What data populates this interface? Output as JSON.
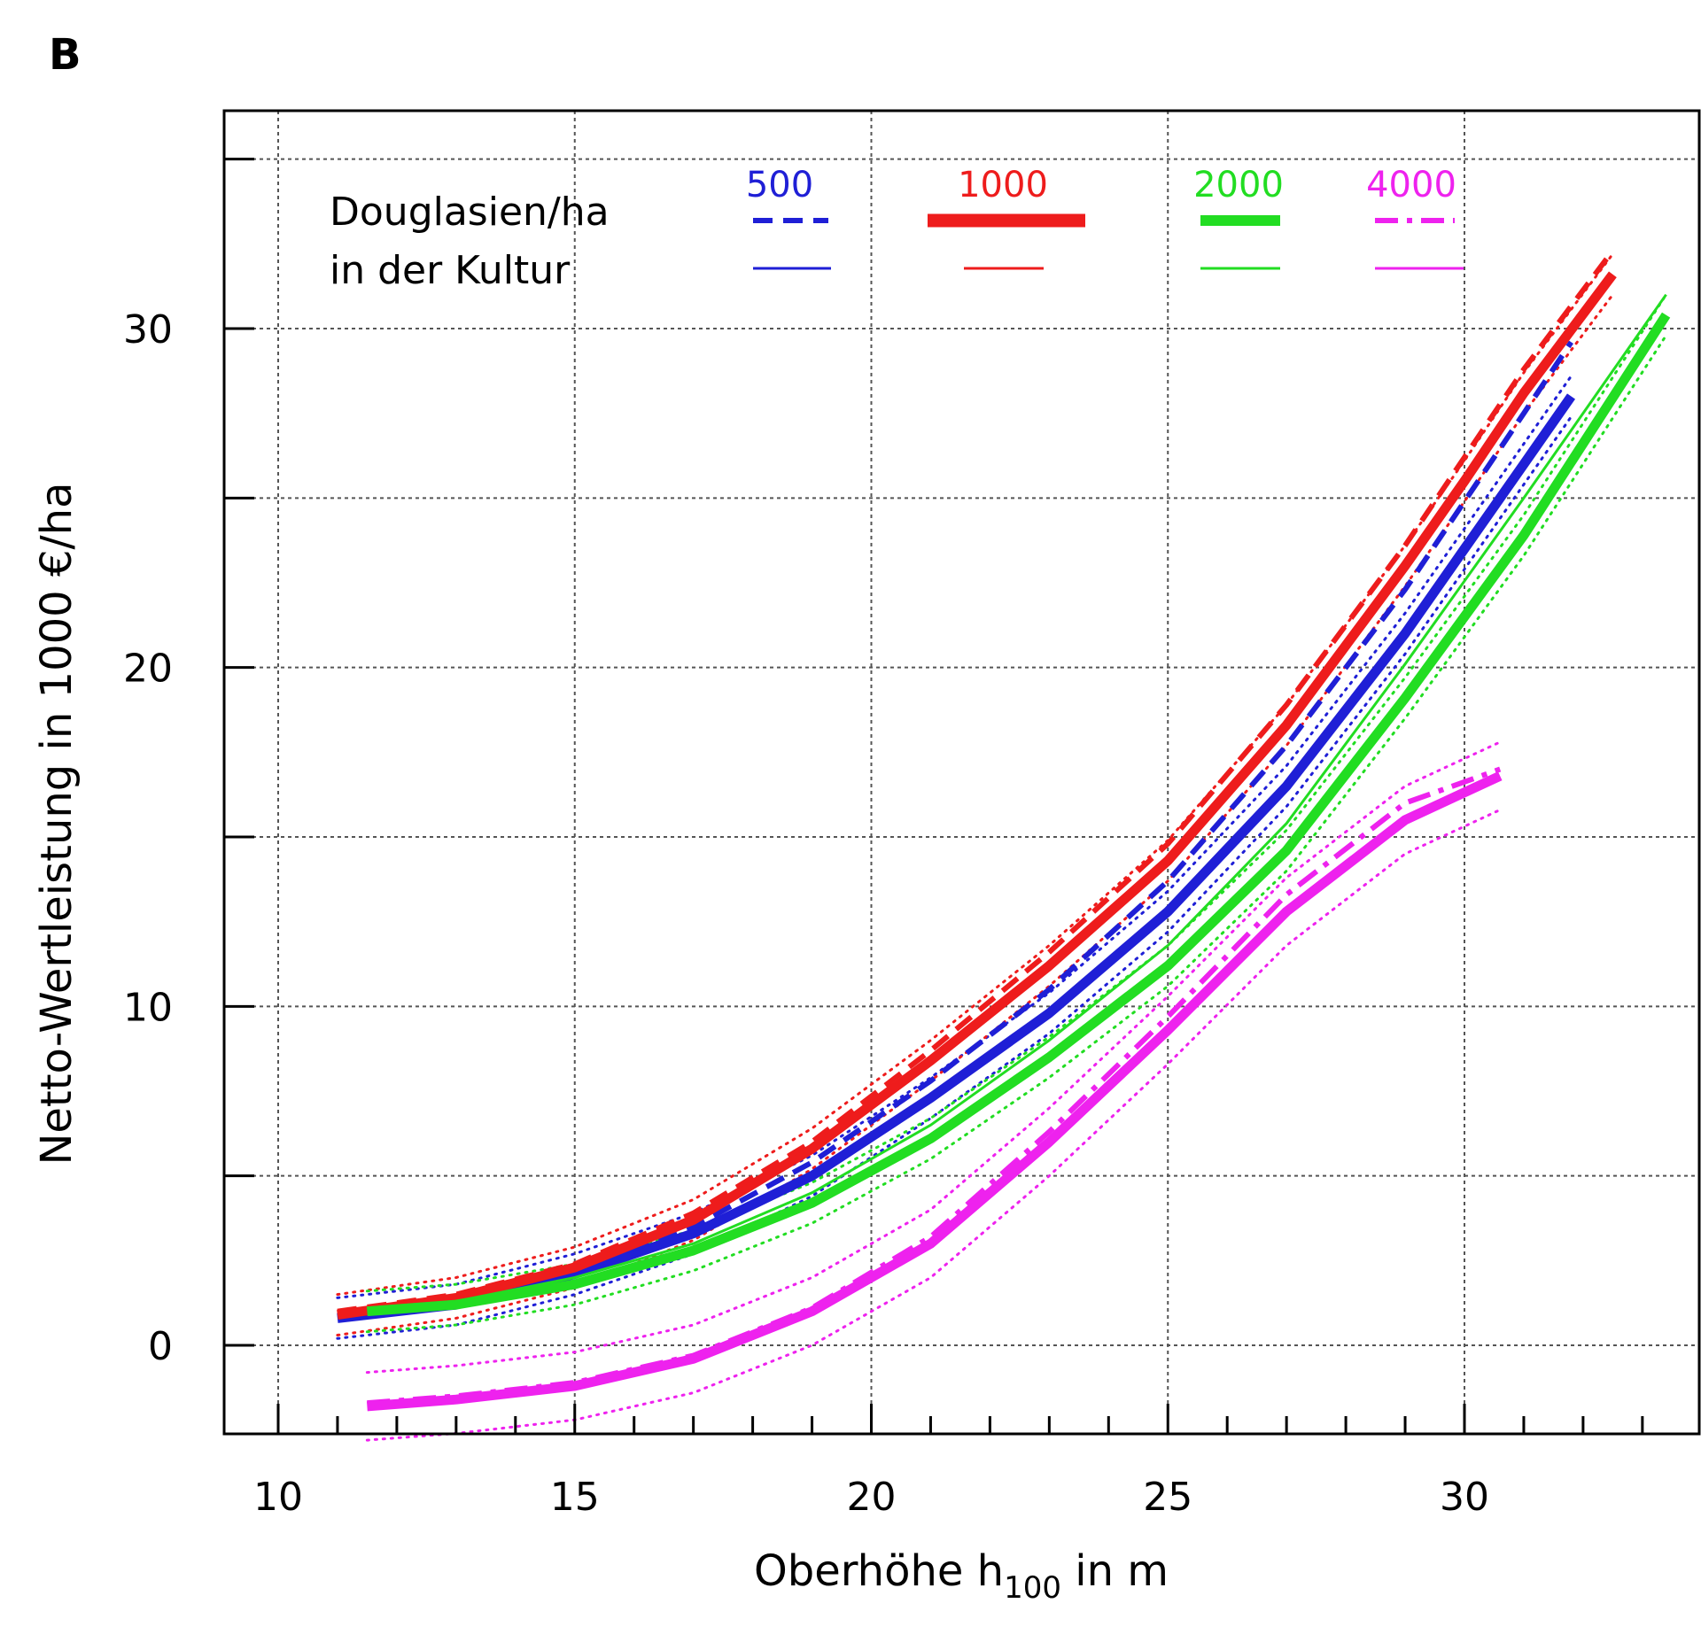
{
  "panel_label": "B",
  "chart_data": {
    "type": "line",
    "xlabel": {
      "main": "Oberhöhe h",
      "sub": "100",
      "unit": " in m"
    },
    "ylabel": "Netto-Wertleistung in  1000 €/ha",
    "xlim": [
      9.1,
      34.0
    ],
    "ylim": [
      -2.6,
      36.5
    ],
    "x_ticks": [
      10,
      15,
      20,
      25,
      30
    ],
    "y_ticks": [
      0,
      10,
      20,
      30
    ],
    "x_gridlines": [
      10,
      15,
      20,
      25,
      30
    ],
    "y_gridlines": [
      0,
      5,
      10,
      15,
      20,
      25,
      30,
      35
    ],
    "grid": true,
    "legend": {
      "title_line1": "Douglasien/ha",
      "title_line2": "in der Kultur",
      "placement": "top-left",
      "entries": [
        {
          "label": "500",
          "color": "#1f1fd6"
        },
        {
          "label": "1000",
          "color": "#ee1c1c"
        },
        {
          "label": "2000",
          "color": "#22dd22"
        },
        {
          "label": "4000",
          "color": "#ee22ee"
        }
      ]
    },
    "series": [
      {
        "name": "500",
        "color": "#1f1fd6",
        "style": "solid-thick",
        "x": [
          11,
          13,
          15,
          17,
          19,
          21,
          23,
          25,
          27,
          29,
          30,
          31,
          31.8
        ],
        "y": [
          0.8,
          1.2,
          2.1,
          3.3,
          5.0,
          7.3,
          9.8,
          12.8,
          16.5,
          21.0,
          23.5,
          26.0,
          28.0
        ]
      },
      {
        "name": "500",
        "color": "#1f1fd6",
        "style": "dashed",
        "x": [
          11,
          13,
          15,
          17,
          19,
          21,
          23,
          25,
          27,
          29,
          30,
          31,
          31.8
        ],
        "y": [
          0.9,
          1.3,
          2.2,
          3.5,
          5.4,
          7.8,
          10.5,
          13.7,
          17.7,
          22.3,
          24.9,
          27.5,
          29.6
        ]
      },
      {
        "name": "1000",
        "color": "#ee1c1c",
        "style": "solid-thick",
        "x": [
          11,
          13,
          15,
          17,
          19,
          21,
          23,
          25,
          27,
          29,
          30,
          31,
          32.5
        ],
        "y": [
          0.9,
          1.4,
          2.3,
          3.7,
          5.8,
          8.4,
          11.2,
          14.3,
          18.3,
          23.0,
          25.5,
          28.1,
          31.6
        ]
      },
      {
        "name": "1000",
        "color": "#ee1c1c",
        "style": "dashed",
        "x": [
          11,
          13,
          15,
          17,
          19,
          21,
          23,
          25,
          27,
          29,
          30,
          31,
          32.5
        ],
        "y": [
          1.0,
          1.5,
          2.4,
          3.9,
          6.0,
          8.7,
          11.6,
          14.8,
          18.9,
          23.6,
          26.2,
          28.8,
          32.3
        ]
      },
      {
        "name": "2000",
        "color": "#22dd22",
        "style": "solid-thick",
        "x": [
          11.5,
          13,
          15,
          17,
          19,
          21,
          23,
          25,
          27,
          29,
          31,
          33.4
        ],
        "y": [
          1.0,
          1.2,
          1.8,
          2.8,
          4.2,
          6.1,
          8.5,
          11.2,
          14.6,
          19.1,
          23.9,
          30.4
        ]
      },
      {
        "name": "2000",
        "color": "#22dd22",
        "style": "thin",
        "x": [
          11.5,
          13,
          15,
          17,
          19,
          21,
          23,
          25,
          27,
          29,
          31,
          33.4
        ],
        "y": [
          1.1,
          1.3,
          2.0,
          3.0,
          4.5,
          6.5,
          9.0,
          11.8,
          15.4,
          20.1,
          25.0,
          31.0
        ]
      },
      {
        "name": "4000",
        "color": "#ee22ee",
        "style": "solid-thick",
        "x": [
          11.5,
          13,
          15,
          17,
          19,
          21,
          23,
          25,
          27,
          29,
          30.6
        ],
        "y": [
          -1.8,
          -1.6,
          -1.2,
          -0.4,
          1.0,
          3.0,
          6.0,
          9.3,
          12.8,
          15.5,
          16.8
        ]
      },
      {
        "name": "4000",
        "color": "#ee22ee",
        "style": "dashdot",
        "x": [
          11.5,
          13,
          15,
          17,
          19,
          21,
          23,
          25,
          27,
          29,
          30.6
        ],
        "y": [
          -1.7,
          -1.5,
          -1.1,
          -0.3,
          1.1,
          3.2,
          6.3,
          9.7,
          13.3,
          16.0,
          17.0
        ]
      }
    ]
  }
}
